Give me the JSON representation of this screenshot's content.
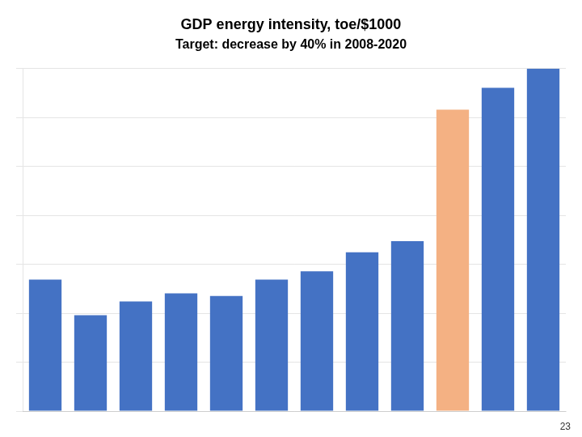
{
  "chart_data": {
    "type": "bar",
    "title": "GDP energy intensity, toe/$1000",
    "subtitle": "Target: decrease by 40% in 2008-2020",
    "categories": [
      null,
      null,
      null,
      null,
      null,
      null,
      null,
      null,
      null,
      null,
      null,
      null
    ],
    "values": [
      4.8,
      3.5,
      4.0,
      4.3,
      4.2,
      4.8,
      5.1,
      5.8,
      6.2,
      11.0,
      11.8,
      12.5
    ],
    "colors": [
      "#4472C4",
      "#4472C4",
      "#4472C4",
      "#4472C4",
      "#4472C4",
      "#4472C4",
      "#4472C4",
      "#4472C4",
      "#4472C4",
      "#F4B183",
      "#4472C4",
      "#4472C4"
    ],
    "ylim": [
      0,
      12.5
    ],
    "yticks": [
      0,
      1.7857142857142858,
      3.5714285714285716,
      5.357142857142858,
      7.142857142857143,
      8.928571428571429,
      10.714285714285715,
      12.5
    ],
    "grid": true,
    "tick_labels": false,
    "annotations": [
      "23"
    ]
  }
}
